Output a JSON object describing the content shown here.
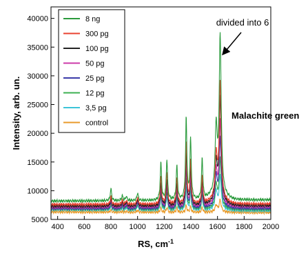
{
  "chart_data": {
    "type": "line",
    "title": "",
    "xlabel": "RS, cm",
    "xlabel_sup": "-1",
    "ylabel": "Intensity, arb. un.",
    "xlim": [
      350,
      2000
    ],
    "ylim": [
      5000,
      42000
    ],
    "xticks": [
      400,
      600,
      800,
      1000,
      1200,
      1400,
      1600,
      1800,
      2000
    ],
    "yticks": [
      5000,
      10000,
      15000,
      20000,
      25000,
      30000,
      35000,
      40000
    ],
    "grid": false,
    "legend": "top-left",
    "annotations": [
      {
        "text": "divided into 6",
        "x": 1620,
        "y": 36000
      },
      {
        "text": "Malachite green",
        "x": 2000,
        "y": 28000
      }
    ],
    "peaks": [
      800,
      885,
      915,
      1000,
      1175,
      1220,
      1295,
      1365,
      1398,
      1485,
      1590,
      1620
    ],
    "series": [
      {
        "name": "8 ng",
        "color": "#2a9a3c",
        "baseline": [
          8200,
          8400
        ],
        "peaks": [
          10300,
          9100,
          9000,
          9600,
          14800,
          15300,
          14200,
          22600,
          18700,
          15500,
          20700,
          36500
        ]
      },
      {
        "name": "300 pg",
        "color": "#e8412f",
        "baseline": [
          7600,
          7700
        ],
        "peaks": [
          9000,
          8300,
          8300,
          8900,
          12300,
          13200,
          12000,
          18300,
          15000,
          12500,
          16000,
          28500
        ]
      },
      {
        "name": "100 pg",
        "color": "#222222",
        "baseline": [
          7300,
          7400
        ],
        "peaks": [
          8600,
          8000,
          8000,
          8500,
          11200,
          12000,
          11000,
          16500,
          13800,
          11800,
          14800,
          26000
        ]
      },
      {
        "name": "50 pg",
        "color": "#cc3aa8",
        "baseline": [
          7100,
          7200
        ],
        "peaks": [
          8300,
          7800,
          7800,
          8300,
          10600,
          11300,
          10400,
          14800,
          12500,
          11000,
          13500,
          22000
        ]
      },
      {
        "name": "25 pg",
        "color": "#3a3aa8",
        "baseline": [
          6900,
          6900
        ],
        "peaks": [
          8000,
          7500,
          7500,
          8000,
          10000,
          10600,
          9800,
          13500,
          11700,
          10400,
          12500,
          19000
        ]
      },
      {
        "name": "12 pg",
        "color": "#3cb050",
        "baseline": [
          6800,
          6700
        ],
        "peaks": [
          7600,
          7300,
          7300,
          7700,
          9200,
          9800,
          9000,
          12000,
          10600,
          9600,
          11000,
          15500
        ]
      },
      {
        "name": "3,5 pg",
        "color": "#3cc4d8",
        "baseline": [
          6700,
          6500
        ],
        "peaks": [
          7300,
          7000,
          7000,
          7400,
          8600,
          9000,
          8400,
          10500,
          9600,
          8900,
          10000,
          12500
        ]
      },
      {
        "name": "control",
        "color": "#e89a2a",
        "baseline": [
          6300,
          6200
        ],
        "peaks": [
          6600,
          6400,
          6400,
          6600,
          7000,
          7100,
          7000,
          7400,
          7200,
          7100,
          7500,
          8300
        ]
      }
    ]
  }
}
